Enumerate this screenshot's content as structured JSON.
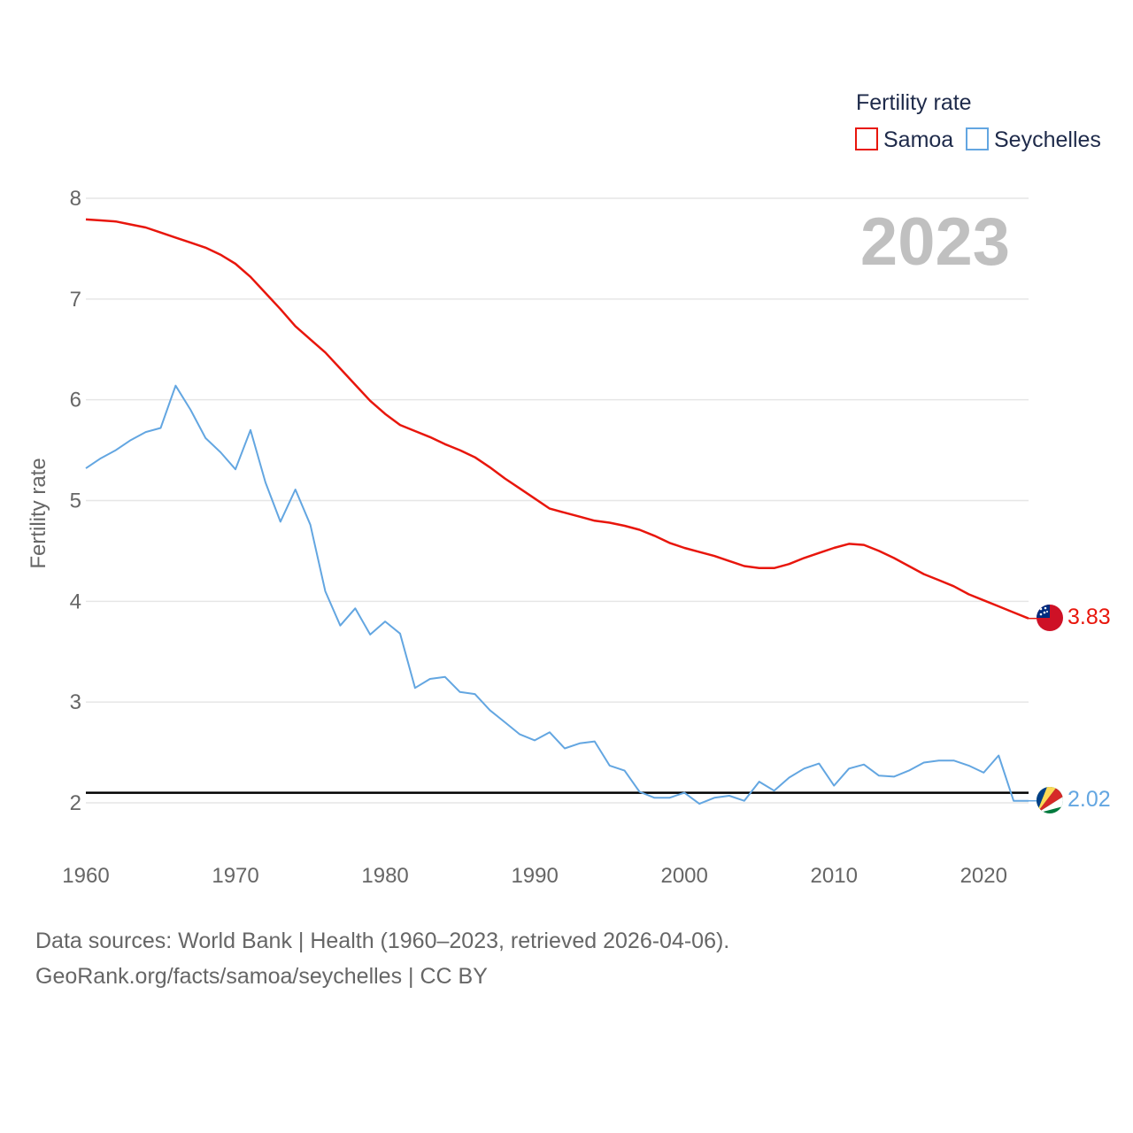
{
  "chart_data": {
    "type": "line",
    "ylabel": "Fertility rate",
    "legend_title": "Fertility rate",
    "legend_position": "top-right",
    "year_label": "2023",
    "ylim": [
      1.4,
      8.2
    ],
    "xlim": [
      1960,
      2023
    ],
    "y_ticks": [
      "2",
      "3",
      "4",
      "5",
      "6",
      "7",
      "8"
    ],
    "x_ticks": [
      "1960",
      "1970",
      "1980",
      "1990",
      "2000",
      "2010",
      "2020"
    ],
    "reference_line": 2.1,
    "grid": true,
    "x": [
      1960,
      1961,
      1962,
      1963,
      1964,
      1965,
      1966,
      1967,
      1968,
      1969,
      1970,
      1971,
      1972,
      1973,
      1974,
      1975,
      1976,
      1977,
      1978,
      1979,
      1980,
      1981,
      1982,
      1983,
      1984,
      1985,
      1986,
      1987,
      1988,
      1989,
      1990,
      1991,
      1992,
      1993,
      1994,
      1995,
      1996,
      1997,
      1998,
      1999,
      2000,
      2001,
      2002,
      2003,
      2004,
      2005,
      2006,
      2007,
      2008,
      2009,
      2010,
      2011,
      2012,
      2013,
      2014,
      2015,
      2016,
      2017,
      2018,
      2019,
      2020,
      2021,
      2022,
      2023
    ],
    "series": [
      {
        "name": "Samoa",
        "color": "#e8160c",
        "end_label": "3.83",
        "flag": "samoa-flag",
        "values": [
          7.79,
          7.78,
          7.77,
          7.74,
          7.71,
          7.66,
          7.61,
          7.56,
          7.51,
          7.44,
          7.35,
          7.22,
          7.06,
          6.9,
          6.73,
          6.6,
          6.47,
          6.31,
          6.15,
          5.99,
          5.86,
          5.75,
          5.69,
          5.63,
          5.56,
          5.5,
          5.43,
          5.33,
          5.22,
          5.12,
          5.02,
          4.92,
          4.88,
          4.84,
          4.8,
          4.78,
          4.75,
          4.71,
          4.65,
          4.58,
          4.53,
          4.49,
          4.45,
          4.4,
          4.35,
          4.33,
          4.33,
          4.37,
          4.43,
          4.48,
          4.53,
          4.57,
          4.56,
          4.5,
          4.43,
          4.35,
          4.27,
          4.21,
          4.15,
          4.07,
          4.01,
          3.95,
          3.89,
          3.83
        ]
      },
      {
        "name": "Seychelles",
        "color": "#63a6e1",
        "end_label": "2.02",
        "flag": "seychelles-flag",
        "values": [
          5.32,
          5.42,
          5.5,
          5.6,
          5.68,
          5.72,
          6.14,
          5.9,
          5.62,
          5.48,
          5.31,
          5.7,
          5.18,
          4.79,
          5.11,
          4.76,
          4.1,
          3.76,
          3.93,
          3.67,
          3.8,
          3.68,
          3.14,
          3.23,
          3.25,
          3.1,
          3.08,
          2.92,
          2.8,
          2.68,
          2.62,
          2.7,
          2.54,
          2.59,
          2.61,
          2.37,
          2.32,
          2.11,
          2.05,
          2.05,
          2.1,
          1.99,
          2.05,
          2.07,
          2.02,
          2.21,
          2.12,
          2.25,
          2.34,
          2.39,
          2.17,
          2.34,
          2.38,
          2.27,
          2.26,
          2.32,
          2.4,
          2.42,
          2.42,
          2.37,
          2.3,
          2.47,
          2.02,
          2.02
        ]
      }
    ]
  },
  "footer": {
    "line1": "Data sources: World Bank | Health (1960–2023, retrieved 2026-04-06).",
    "line2": "GeoRank.org/facts/samoa/seychelles | CC BY"
  }
}
